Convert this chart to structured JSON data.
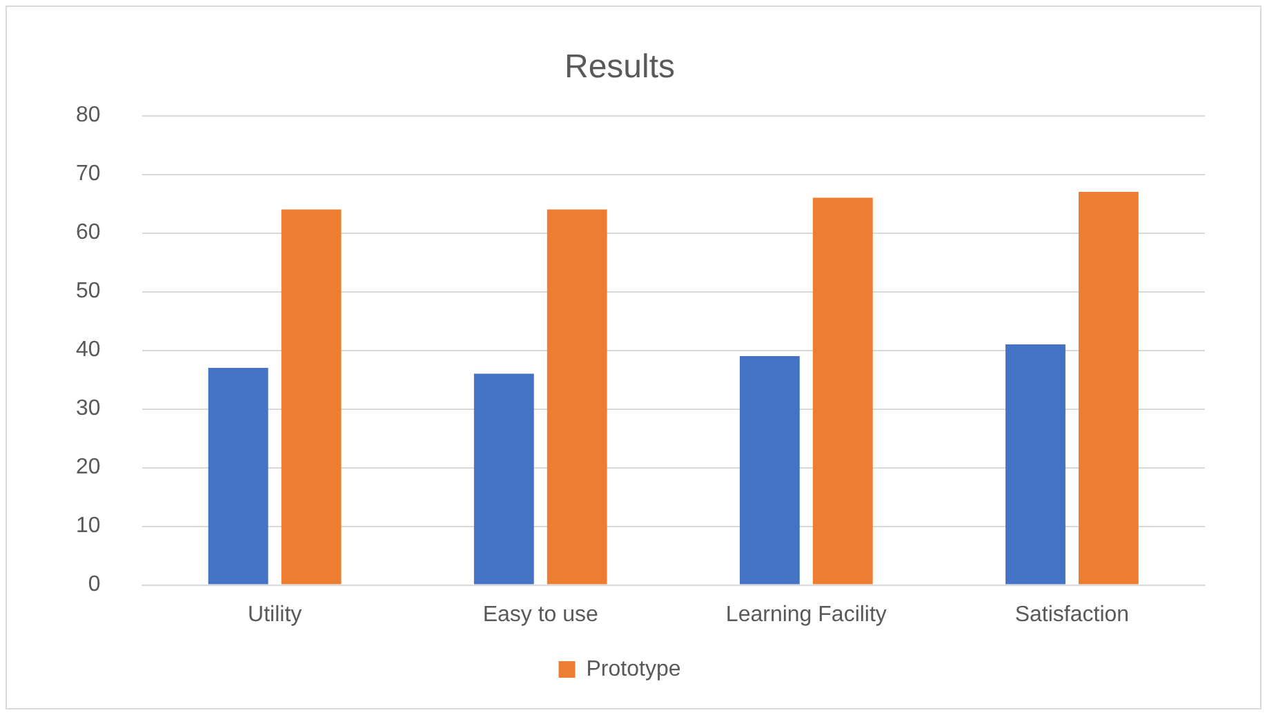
{
  "chart_data": {
    "type": "bar",
    "title": "Results",
    "categories": [
      "Utility",
      "Easy to use",
      "Learning Facility",
      "Satisfaction"
    ],
    "series": [
      {
        "color": "#4472c4",
        "values": [
          37,
          36,
          39,
          41
        ]
      },
      {
        "name": "Prototype",
        "color": "#ed7d31",
        "values": [
          64,
          64,
          66,
          67
        ]
      }
    ],
    "ylim": [
      0,
      80
    ],
    "yticks": [
      0,
      10,
      20,
      30,
      40,
      50,
      60,
      70,
      80
    ],
    "grid": "y",
    "legend": "bottom"
  }
}
